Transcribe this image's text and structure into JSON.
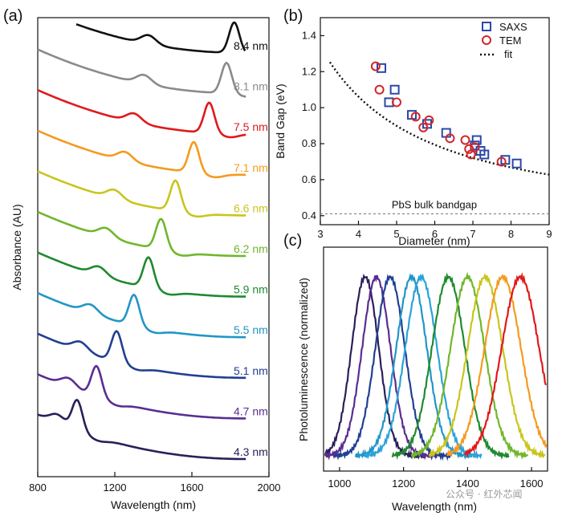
{
  "panels": {
    "a": "(a)",
    "b": "(b)",
    "c": "(c)"
  },
  "watermark": "公众号 · 红外芯闻",
  "chart_data": [
    {
      "id": "a",
      "type": "line",
      "title": "",
      "xlabel": "Wavelength (nm)",
      "ylabel": "Absorbance (AU)",
      "xlim": [
        800,
        2000
      ],
      "xticks": [
        800,
        1200,
        1600,
        2000
      ],
      "series": [
        {
          "name": "8.4 nm",
          "color": "#111111",
          "peak": 1820,
          "x0": 1000
        },
        {
          "name": "8.1 nm",
          "color": "#8a8a8a",
          "peak": 1780,
          "x0": 800
        },
        {
          "name": "7.5 nm",
          "color": "#e0191b",
          "peak": 1690,
          "x0": 800
        },
        {
          "name": "7.1 nm",
          "color": "#f49a1f",
          "peak": 1610,
          "x0": 800
        },
        {
          "name": "6.6 nm",
          "color": "#c9c51e",
          "peak": 1515,
          "x0": 800
        },
        {
          "name": "6.2 nm",
          "color": "#71b62c",
          "peak": 1440,
          "x0": 800
        },
        {
          "name": "5.9 nm",
          "color": "#1f8a2f",
          "peak": 1375,
          "x0": 800
        },
        {
          "name": "5.5 nm",
          "color": "#2196c6",
          "peak": 1300,
          "x0": 800
        },
        {
          "name": "5.1 nm",
          "color": "#213f91",
          "peak": 1210,
          "x0": 800
        },
        {
          "name": "4.7 nm",
          "color": "#5a2d91",
          "peak": 1105,
          "x0": 800
        },
        {
          "name": "4.3 nm",
          "color": "#2a1f5a",
          "peak": 1005,
          "x0": 800
        }
      ]
    },
    {
      "id": "b",
      "type": "scatter",
      "title": "",
      "xlabel": "Diameter (nm)",
      "ylabel": "Band Gap (eV)",
      "xlim": [
        3,
        9
      ],
      "ylim": [
        0.35,
        1.5
      ],
      "xticks": [
        3,
        4,
        5,
        6,
        7,
        8,
        9
      ],
      "yticks": [
        0.4,
        0.6,
        0.8,
        1.0,
        1.2,
        1.4
      ],
      "legend": [
        "SAXS",
        "TEM",
        "fit"
      ],
      "annotation": "PbS bulk bandgap",
      "bulk_gap": 0.41,
      "series": [
        {
          "name": "SAXS",
          "marker": "square",
          "color": "#2b48a8",
          "x": [
            4.6,
            4.8,
            4.95,
            5.4,
            5.8,
            6.3,
            7.05,
            7.1,
            7.2,
            7.3,
            7.85,
            8.15
          ],
          "y": [
            1.22,
            1.03,
            1.1,
            0.96,
            0.91,
            0.86,
            0.79,
            0.82,
            0.76,
            0.74,
            0.71,
            0.69
          ]
        },
        {
          "name": "TEM",
          "marker": "circle",
          "color": "#d0262a",
          "x": [
            4.45,
            4.55,
            5.0,
            5.5,
            5.7,
            5.85,
            6.4,
            6.8,
            6.9,
            6.95,
            7.05,
            7.75
          ],
          "y": [
            1.23,
            1.1,
            1.03,
            0.95,
            0.89,
            0.93,
            0.83,
            0.82,
            0.77,
            0.74,
            0.78,
            0.7
          ]
        },
        {
          "name": "fit",
          "style": "dotted",
          "color": "#111111"
        }
      ]
    },
    {
      "id": "c",
      "type": "line",
      "title": "",
      "xlabel": "Wavelength (nm)",
      "ylabel": "Photoluminescence (normalized)",
      "xlim": [
        950,
        1650
      ],
      "xticks": [
        1000,
        1200,
        1400,
        1600
      ],
      "series": [
        {
          "name": "4.3 nm",
          "color": "#2a1f5a",
          "peak": 1080
        },
        {
          "name": "4.7 nm",
          "color": "#5a2d91",
          "peak": 1115
        },
        {
          "name": "5.1 nm",
          "color": "#213f91",
          "peak": 1158
        },
        {
          "name": "5.5 nm",
          "color": "#2196c6",
          "peak": 1225
        },
        {
          "name": "5.9 nm",
          "color": "#2aa3d8",
          "peak": 1255
        },
        {
          "name": "6.2 nm",
          "color": "#1f8a2f",
          "peak": 1340
        },
        {
          "name": "6.6 nm",
          "color": "#71b62c",
          "peak": 1400
        },
        {
          "name": "7.1 nm",
          "color": "#c9c51e",
          "peak": 1455
        },
        {
          "name": "7.5 nm",
          "color": "#f49a1f",
          "peak": 1510
        },
        {
          "name": "8.1 nm",
          "color": "#e0191b",
          "peak": 1565
        }
      ]
    }
  ]
}
